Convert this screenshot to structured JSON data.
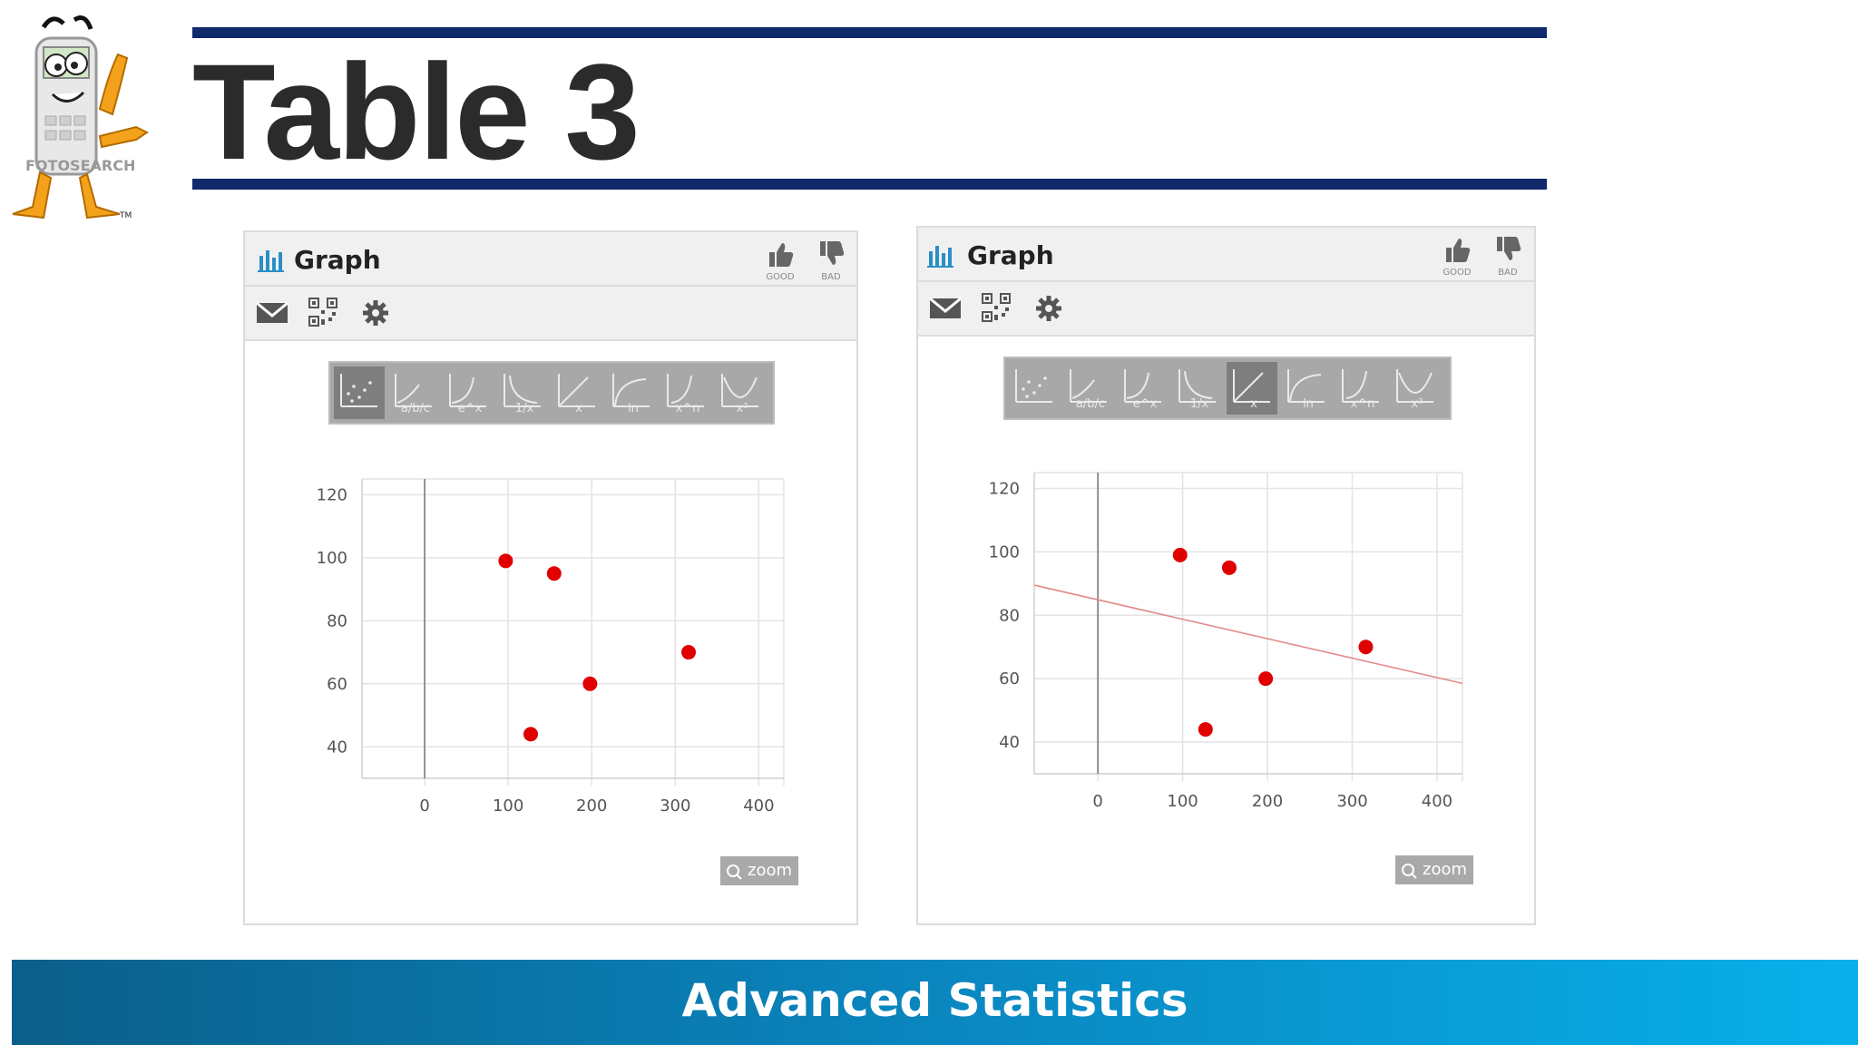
{
  "slide": {
    "title": "Table 3",
    "footer": "Advanced Statistics",
    "mascot_brand": "FOTOSEARCH"
  },
  "colors": {
    "rule": "#102a6b",
    "title": "#2b2b2b",
    "point": "#e00000",
    "trendline": "#e38a8a",
    "footer_start": "#0b5f8a",
    "footer_end": "#08b0ea",
    "selected_type": "#7e7e7e"
  },
  "panels": [
    {
      "header": {
        "title": "Graph",
        "icon": "bar-chart-icon",
        "good_label": "GOOD",
        "bad_label": "BAD"
      },
      "toolbar": [
        "mail-icon",
        "qr-code-icon",
        "gear-icon"
      ],
      "graph_types": [
        "scatter",
        "linear",
        "exponential",
        "inverse",
        "proportional",
        "logarithmic",
        "power",
        "quadratic"
      ],
      "graph_type_labels": [
        "",
        "a/b/c",
        "e^x",
        "1/x",
        "x",
        "ln",
        "x^n",
        "x²"
      ],
      "selected_type": "scatter",
      "zoom_label": "zoom"
    },
    {
      "header": {
        "title": "Graph",
        "icon": "bar-chart-icon",
        "good_label": "GOOD",
        "bad_label": "BAD"
      },
      "toolbar": [
        "mail-icon",
        "qr-code-icon",
        "gear-icon"
      ],
      "graph_types": [
        "scatter",
        "linear",
        "exponential",
        "inverse",
        "proportional",
        "logarithmic",
        "power",
        "quadratic"
      ],
      "graph_type_labels": [
        "",
        "a/b/c",
        "e^x",
        "1/x",
        "x",
        "ln",
        "x^n",
        "x²"
      ],
      "selected_type": "proportional",
      "zoom_label": "zoom"
    }
  ],
  "chart_data": [
    {
      "type": "scatter",
      "title": "",
      "xlabel": "",
      "ylabel": "",
      "x_ticks": [
        0,
        100,
        200,
        300,
        400
      ],
      "y_ticks": [
        40,
        60,
        80,
        100,
        120
      ],
      "xlim": [
        -75,
        430
      ],
      "ylim": [
        30,
        125
      ],
      "grid": true,
      "points": [
        {
          "x": 97,
          "y": 99
        },
        {
          "x": 155,
          "y": 95
        },
        {
          "x": 127,
          "y": 44
        },
        {
          "x": 198,
          "y": 60
        },
        {
          "x": 316,
          "y": 70
        }
      ]
    },
    {
      "type": "scatter",
      "title": "",
      "xlabel": "",
      "ylabel": "",
      "x_ticks": [
        0,
        100,
        200,
        300,
        400
      ],
      "y_ticks": [
        40,
        60,
        80,
        100,
        120
      ],
      "xlim": [
        -75,
        430
      ],
      "ylim": [
        30,
        125
      ],
      "grid": true,
      "points": [
        {
          "x": 97,
          "y": 99
        },
        {
          "x": 155,
          "y": 95
        },
        {
          "x": 127,
          "y": 44
        },
        {
          "x": 198,
          "y": 60
        },
        {
          "x": 316,
          "y": 70
        }
      ],
      "trendline": {
        "type": "linear",
        "x": [
          -75,
          430
        ],
        "y": [
          89.5,
          58.5
        ]
      }
    }
  ]
}
